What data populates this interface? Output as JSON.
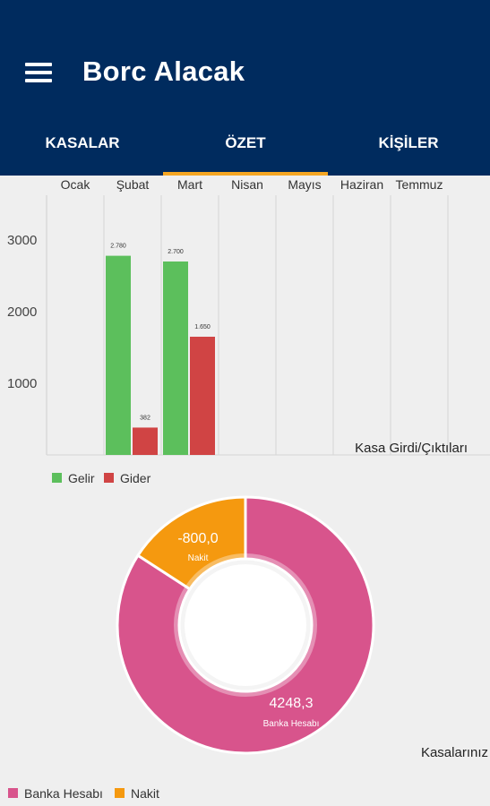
{
  "app": {
    "title": "Borc Alacak"
  },
  "tabs": [
    {
      "label": "KASALAR"
    },
    {
      "label": "ÖZET",
      "active": true
    },
    {
      "label": "KİŞİLER"
    }
  ],
  "colors": {
    "appbar": "#002b5e",
    "indicator": "#f5a623",
    "gelir": "#5cbf5c",
    "gider": "#d04444",
    "banka": "#d8548c",
    "nakit": "#f5990f"
  },
  "chart_data": [
    {
      "type": "bar",
      "title": "Kasa Girdi/Çıktıları",
      "categories": [
        "Ocak",
        "Şubat",
        "Mart",
        "Nisan",
        "Mayıs",
        "Haziran",
        "Temmuz"
      ],
      "series": [
        {
          "name": "Gelir",
          "values": [
            0,
            2780,
            2700,
            0,
            0,
            0,
            0
          ],
          "labels": [
            "",
            "2.780",
            "2.700",
            "",
            "",
            "",
            ""
          ]
        },
        {
          "name": "Gider",
          "values": [
            0,
            382,
            1650,
            0,
            0,
            0,
            0
          ],
          "labels": [
            "",
            "382",
            "1.650",
            "",
            "",
            "",
            ""
          ]
        }
      ],
      "y_ticks": [
        "3000",
        "2000",
        "1000"
      ],
      "ylim": [
        0,
        3600
      ],
      "legend": "bottom-left"
    },
    {
      "type": "pie",
      "title": "Kasalarınız",
      "slices": [
        {
          "name": "Banka Hesabı",
          "value": 4248.3,
          "label": "4248,3"
        },
        {
          "name": "Nakit",
          "value": -800.0,
          "label": "-800,0"
        }
      ],
      "legend": "bottom-left"
    }
  ]
}
